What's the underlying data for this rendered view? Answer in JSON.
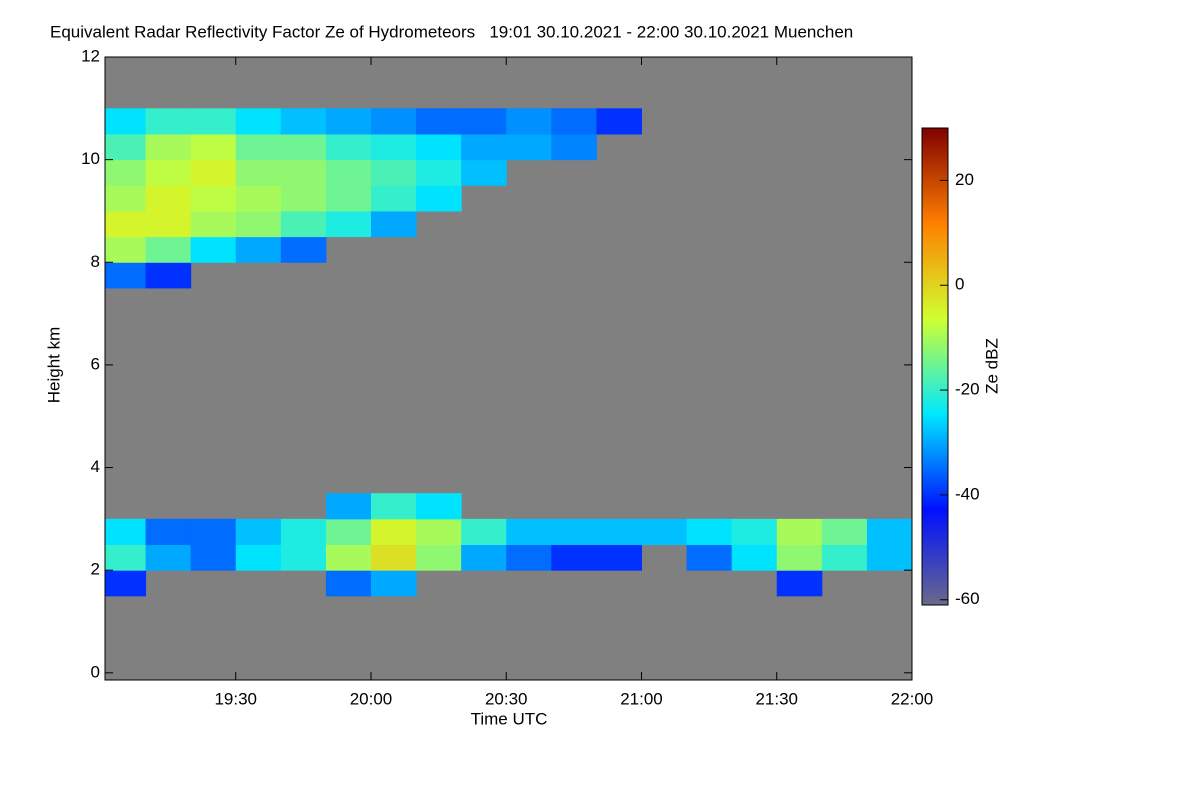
{
  "chart_data": {
    "type": "heatmap",
    "title": "Equivalent Radar Reflectivity Factor Ze of Hydrometeors   19:01 30.10.2021 - 22:00 30.10.2021 Muenchen",
    "xlabel": "Time UTC",
    "ylabel": "Height km",
    "colorbar_label": "Ze dBZ",
    "background": "#808080",
    "colormap": [
      "#6a6a8a",
      "#0010ff",
      "#00e8ff",
      "#d0ff30",
      "#ff8000",
      "#800000"
    ],
    "x": [
      19.0833,
      19.25,
      19.4167,
      19.5833,
      19.75,
      19.9167,
      20.0833,
      20.25,
      20.4167,
      20.5833,
      20.75,
      20.9167,
      21.0833,
      21.25,
      21.4167,
      21.5833,
      21.75,
      21.9167
    ],
    "y": [
      1.75,
      2.25,
      2.75,
      3.25,
      7.75,
      8.25,
      8.75,
      9.25,
      9.75,
      10.25,
      10.75
    ],
    "values": [
      [
        -40,
        null,
        null,
        null,
        null,
        -35,
        -30,
        null,
        null,
        null,
        null,
        null,
        null,
        null,
        null,
        -40,
        null,
        null
      ],
      [
        -20,
        -30,
        -35,
        -25,
        -22,
        -10,
        -2,
        -12,
        -30,
        -35,
        -40,
        -40,
        null,
        -35,
        -25,
        -12,
        -20,
        -28
      ],
      [
        -25,
        -35,
        -35,
        -28,
        -22,
        -15,
        -5,
        -10,
        -20,
        -28,
        -28,
        -28,
        -28,
        -25,
        -22,
        -10,
        -15,
        -28
      ],
      [
        null,
        null,
        null,
        null,
        null,
        -30,
        -20,
        -25,
        null,
        null,
        null,
        null,
        null,
        null,
        null,
        null,
        null,
        null
      ],
      [
        -35,
        -40,
        null,
        null,
        null,
        null,
        null,
        null,
        null,
        null,
        null,
        null,
        null,
        null,
        null,
        null,
        null,
        null
      ],
      [
        -10,
        -15,
        -25,
        -30,
        -35,
        null,
        null,
        null,
        null,
        null,
        null,
        null,
        null,
        null,
        null,
        null,
        null,
        null
      ],
      [
        -5,
        -5,
        -10,
        -12,
        -18,
        -22,
        -30,
        null,
        null,
        null,
        null,
        null,
        null,
        null,
        null,
        null,
        null,
        null
      ],
      [
        -10,
        -5,
        -8,
        -10,
        -12,
        -15,
        -20,
        -25,
        null,
        null,
        null,
        null,
        null,
        null,
        null,
        null,
        null,
        null
      ],
      [
        -12,
        -8,
        -5,
        -12,
        -12,
        -15,
        -18,
        -22,
        -28,
        null,
        null,
        null,
        null,
        null,
        null,
        null,
        null,
        null
      ],
      [
        -18,
        -10,
        -8,
        -15,
        -15,
        -20,
        -22,
        -25,
        -30,
        -30,
        -33,
        null,
        null,
        null,
        null,
        null,
        null,
        null
      ],
      [
        -25,
        -20,
        -20,
        -25,
        -28,
        -30,
        -32,
        -35,
        -35,
        -32,
        -35,
        -40,
        null,
        null,
        null,
        null,
        null,
        null
      ]
    ],
    "xlim": [
      19.0167,
      22.0
    ],
    "xticks": [
      {
        "value": 19.5,
        "label": "19:30"
      },
      {
        "value": 20,
        "label": "20:00"
      },
      {
        "value": 20.5,
        "label": "20:30"
      },
      {
        "value": 21,
        "label": "21:00"
      },
      {
        "value": 21.5,
        "label": "21:30"
      },
      {
        "value": 22,
        "label": "22:00"
      }
    ],
    "ylim": [
      -0.14,
      12
    ],
    "yticks": [
      0,
      2,
      4,
      6,
      8,
      10,
      12
    ],
    "zlim": [
      -61,
      30
    ],
    "zticks": [
      -60,
      -40,
      -20,
      0,
      20
    ]
  }
}
